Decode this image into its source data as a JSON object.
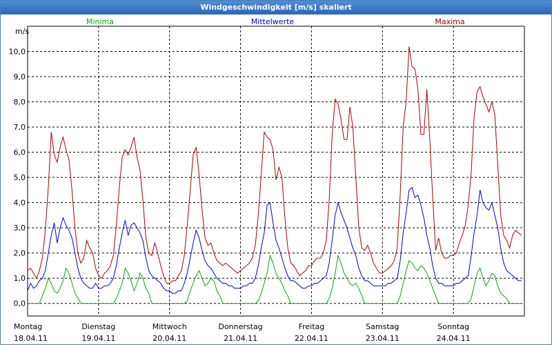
{
  "window": {
    "title": "Windgeschwindigkeit [m/s] skaliert"
  },
  "colors": {
    "minima": "#00aa00",
    "mittel": "#0000cc",
    "maxima": "#aa0000",
    "titlebar": "#2a66b8"
  },
  "chart_data": {
    "type": "line",
    "title": "Windgeschwindigkeit [m/s] skaliert",
    "ylabel": "m/s",
    "ylim": [
      -0.5,
      11.0
    ],
    "yticks": [
      "0,0",
      "1,0",
      "2,0",
      "3,0",
      "4,0",
      "5,0",
      "6,0",
      "7,0",
      "8,0",
      "9,0",
      "10,0"
    ],
    "x_range_hours": [
      0,
      168
    ],
    "day_labels": [
      {
        "day": "Montag",
        "date": "18.04.11"
      },
      {
        "day": "Dienstag",
        "date": "19.04.11"
      },
      {
        "day": "Mittwoch",
        "date": "20.04.11"
      },
      {
        "day": "Donnerstag",
        "date": "21.04.11"
      },
      {
        "day": "Freitag",
        "date": "22.04.11"
      },
      {
        "day": "Samstag",
        "date": "23.04.11"
      },
      {
        "day": "Sonntag",
        "date": "24.04.11"
      }
    ],
    "series": [
      {
        "name": "Minima",
        "color": "#00aa00",
        "values": [
          0,
          0,
          0,
          0,
          0,
          0.3,
          0.6,
          1.0,
          0.8,
          0.5,
          0.4,
          0.6,
          0.9,
          1.4,
          1.2,
          0.8,
          0.4,
          0.2,
          0,
          0,
          0,
          0,
          0,
          0,
          0,
          0,
          0,
          0,
          0,
          0,
          0.2,
          0.5,
          0.8,
          1.4,
          1.2,
          0.9,
          0.5,
          0.8,
          1.2,
          1.0,
          0.6,
          0.4,
          0,
          0,
          0,
          0,
          0,
          0,
          0,
          0,
          0,
          0,
          0,
          0,
          0.1,
          0.5,
          0.8,
          1.1,
          1.3,
          1.0,
          0.7,
          0.8,
          1.0,
          0.9,
          0.5,
          0.3,
          0,
          0,
          0,
          0,
          0,
          0,
          0,
          0,
          0,
          0,
          0,
          0,
          0.1,
          0.4,
          0.8,
          1.2,
          1.9,
          1.6,
          1.2,
          1.0,
          0.8,
          0.5,
          0.3,
          0,
          0,
          0,
          0,
          0,
          0,
          0,
          0,
          0,
          0,
          0,
          0,
          0,
          0.2,
          0.6,
          1.2,
          1.9,
          1.6,
          1.2,
          1.0,
          0.8,
          0.7,
          0.8,
          0.6,
          0.3,
          0,
          0,
          0,
          0,
          0,
          0,
          0,
          0,
          0,
          0,
          0,
          0,
          0.3,
          0.8,
          1.3,
          1.7,
          1.6,
          1.4,
          1.3,
          1.5,
          1.4,
          1.2,
          0.9,
          0.6,
          0.3,
          0,
          0,
          0,
          0,
          0,
          0,
          0,
          0,
          0,
          0,
          0,
          0.2,
          0.7,
          1.2,
          1.4,
          1.0,
          0.7,
          0.9,
          1.2,
          1.1,
          0.7,
          0.4,
          0.3,
          0.2,
          0,
          0,
          0,
          0,
          0
        ]
      },
      {
        "name": "Mittelwerte",
        "color": "#0000cc",
        "values": [
          0.5,
          0.8,
          0.6,
          0.7,
          0.9,
          1.0,
          1.3,
          2.0,
          2.7,
          3.2,
          2.4,
          3.0,
          3.4,
          3.1,
          2.9,
          2.6,
          2.0,
          1.4,
          1.0,
          0.8,
          0.7,
          0.6,
          0.6,
          0.8,
          0.6,
          0.6,
          0.7,
          0.7,
          0.8,
          1.0,
          1.5,
          2.2,
          2.8,
          3.3,
          2.7,
          3.1,
          3.2,
          3.0,
          2.8,
          2.5,
          1.8,
          1.3,
          1.1,
          1.0,
          0.9,
          0.8,
          0.6,
          0.5,
          0.5,
          0.4,
          0.4,
          0.5,
          0.5,
          0.8,
          1.2,
          1.8,
          2.4,
          2.9,
          2.6,
          2.1,
          1.7,
          1.5,
          1.4,
          1.2,
          1.0,
          0.9,
          0.8,
          0.8,
          0.7,
          0.7,
          0.6,
          0.6,
          0.6,
          0.7,
          0.7,
          0.8,
          0.8,
          1.0,
          1.5,
          2.2,
          2.8,
          3.9,
          4.0,
          3.2,
          2.5,
          2.2,
          1.8,
          1.4,
          1.1,
          0.9,
          0.9,
          0.8,
          0.7,
          0.6,
          0.6,
          0.7,
          0.7,
          0.8,
          0.8,
          0.9,
          1.0,
          1.1,
          1.6,
          2.5,
          3.5,
          4.0,
          3.6,
          3.3,
          3.0,
          2.6,
          2.2,
          1.9,
          1.4,
          1.1,
          0.9,
          0.9,
          0.8,
          0.7,
          0.7,
          0.7,
          0.7,
          0.7,
          0.8,
          0.8,
          0.9,
          1.0,
          1.7,
          2.8,
          3.6,
          4.5,
          4.6,
          4.2,
          4.3,
          3.9,
          3.4,
          2.7,
          2.2,
          1.5,
          1.0,
          0.8,
          0.8,
          0.7,
          0.7,
          0.7,
          0.7,
          0.8,
          0.8,
          0.9,
          1.0,
          1.1,
          1.9,
          2.8,
          3.5,
          4.5,
          4.0,
          3.8,
          3.7,
          4.0,
          3.5,
          3.0,
          2.2,
          1.6,
          1.3,
          1.2,
          1.1,
          1.0,
          0.9,
          0.9
        ]
      },
      {
        "name": "Maxima",
        "color": "#aa0000",
        "values": [
          1.3,
          1.4,
          1.2,
          1.0,
          1.3,
          1.8,
          2.9,
          4.6,
          6.8,
          5.9,
          5.6,
          6.2,
          6.6,
          6.1,
          5.7,
          4.5,
          3.0,
          2.0,
          1.6,
          1.8,
          2.5,
          2.2,
          2.0,
          1.4,
          1.1,
          1.0,
          1.2,
          1.3,
          1.5,
          1.9,
          3.1,
          4.6,
          5.8,
          6.1,
          5.9,
          6.2,
          6.6,
          5.8,
          5.3,
          4.1,
          2.6,
          2.0,
          1.9,
          2.4,
          2.0,
          1.5,
          1.1,
          0.8,
          0.8,
          0.9,
          0.9,
          1.1,
          1.3,
          1.9,
          3.1,
          4.5,
          5.9,
          6.2,
          5.1,
          3.7,
          2.6,
          2.3,
          2.4,
          2.0,
          1.7,
          1.6,
          1.5,
          1.6,
          1.5,
          1.4,
          1.3,
          1.2,
          1.3,
          1.4,
          1.5,
          1.6,
          1.8,
          2.3,
          3.5,
          5.1,
          6.8,
          6.6,
          6.5,
          6.1,
          4.9,
          5.4,
          5.0,
          3.4,
          2.2,
          1.6,
          1.5,
          1.3,
          1.1,
          1.2,
          1.3,
          1.5,
          1.5,
          1.7,
          1.8,
          1.8,
          2.0,
          2.5,
          4.1,
          6.7,
          8.1,
          7.9,
          7.3,
          6.5,
          6.5,
          7.8,
          7.0,
          5.0,
          3.0,
          2.2,
          2.1,
          2.3,
          2.0,
          1.6,
          1.4,
          1.2,
          1.2,
          1.3,
          1.4,
          1.5,
          1.7,
          2.2,
          4.3,
          7.0,
          8.0,
          10.2,
          9.4,
          9.3,
          8.5,
          6.7,
          6.7,
          8.5,
          6.5,
          4.2,
          2.1,
          2.6,
          2.0,
          1.8,
          1.8,
          1.9,
          1.9,
          2.0,
          2.4,
          2.7,
          3.1,
          3.9,
          5.2,
          7.4,
          8.4,
          8.6,
          8.2,
          7.9,
          7.6,
          8.0,
          7.5,
          5.5,
          3.5,
          2.7,
          2.5,
          2.2,
          2.7,
          2.9,
          2.8,
          2.7
        ]
      }
    ]
  }
}
